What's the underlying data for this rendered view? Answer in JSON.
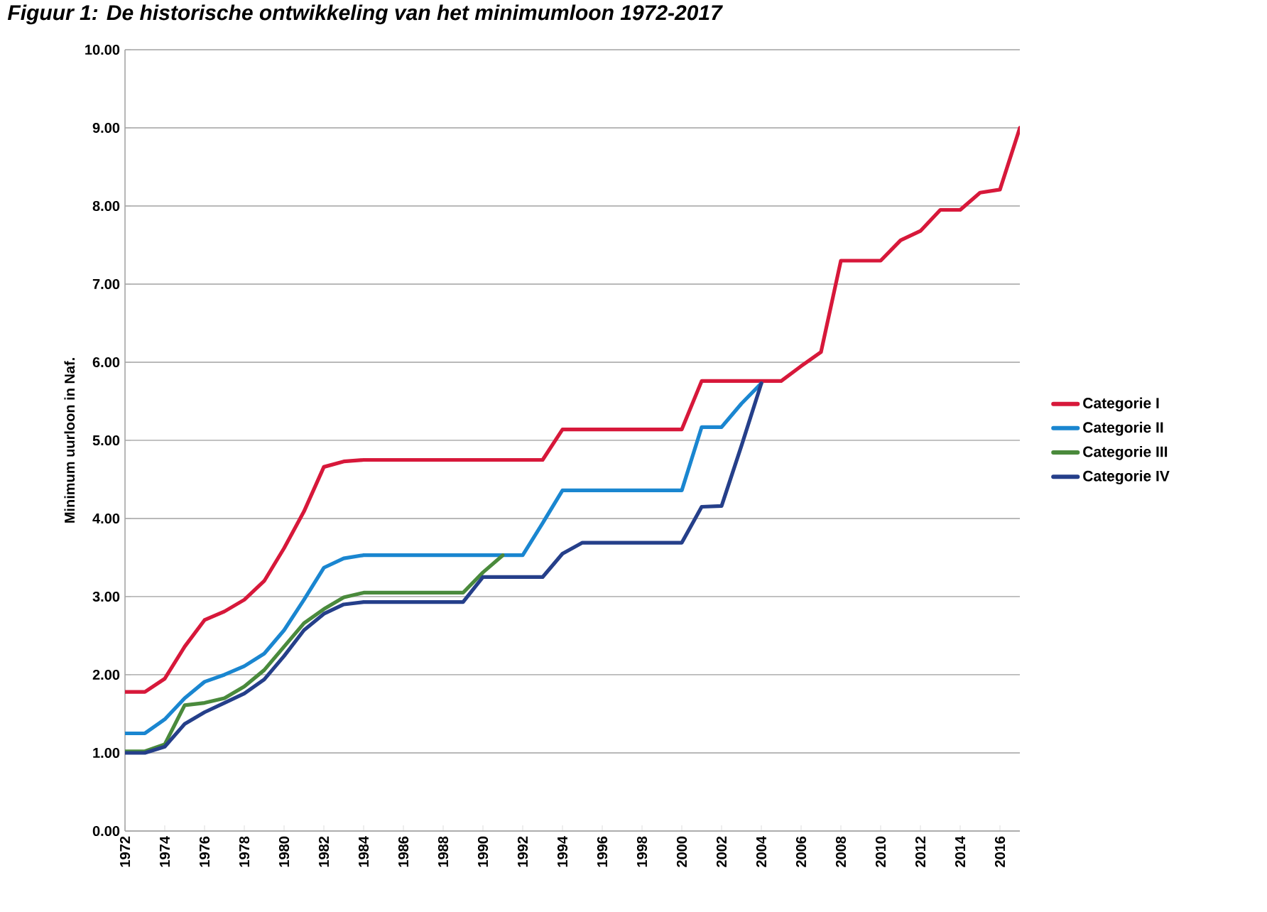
{
  "chart_data": {
    "type": "line",
    "title": "Figuur 1: De historische ontwikkeling van het minimumloon 1972-2017",
    "ylabel": "Minimum uurloon in Naf.",
    "x": [
      1972,
      1973,
      1974,
      1975,
      1976,
      1977,
      1978,
      1979,
      1980,
      1981,
      1982,
      1983,
      1984,
      1985,
      1986,
      1987,
      1988,
      1989,
      1990,
      1991,
      1992,
      1993,
      1994,
      1995,
      1996,
      1997,
      1998,
      1999,
      2000,
      2001,
      2002,
      2003,
      2004,
      2005,
      2006,
      2007,
      2008,
      2009,
      2010,
      2011,
      2012,
      2013,
      2014,
      2015,
      2016,
      2017
    ],
    "series": [
      {
        "name": "Categorie I",
        "color": "#d7183a",
        "values": [
          1.78,
          1.78,
          1.95,
          2.36,
          2.7,
          2.81,
          2.96,
          3.2,
          3.62,
          4.09,
          4.66,
          4.73,
          4.75,
          4.75,
          4.75,
          4.75,
          4.75,
          4.75,
          4.75,
          4.75,
          4.75,
          4.75,
          5.14,
          5.14,
          5.14,
          5.14,
          5.14,
          5.14,
          5.14,
          5.76,
          5.76,
          5.76,
          5.76,
          5.76,
          5.95,
          6.13,
          7.3,
          7.3,
          7.3,
          7.56,
          7.68,
          7.95,
          7.95,
          8.17,
          8.21,
          9.0
        ]
      },
      {
        "name": "Categorie II",
        "color": "#1a86d0",
        "values": [
          1.25,
          1.25,
          1.43,
          1.7,
          1.91,
          2.0,
          2.11,
          2.27,
          2.57,
          2.96,
          3.37,
          3.49,
          3.53,
          3.53,
          3.53,
          3.53,
          3.53,
          3.53,
          3.53,
          3.53,
          3.53,
          3.94,
          4.36,
          4.36,
          4.36,
          4.36,
          4.36,
          4.36,
          4.36,
          5.17,
          5.17,
          5.47,
          5.73,
          null,
          null,
          null,
          null,
          null,
          null,
          null,
          null,
          null,
          null,
          null,
          null,
          null
        ]
      },
      {
        "name": "Categorie III",
        "color": "#4a8a3c",
        "values": [
          1.02,
          1.02,
          1.11,
          1.61,
          1.64,
          1.7,
          1.85,
          2.06,
          2.36,
          2.66,
          2.84,
          2.99,
          3.05,
          3.05,
          3.05,
          3.05,
          3.05,
          3.05,
          3.31,
          3.53,
          null,
          null,
          null,
          null,
          null,
          null,
          null,
          null,
          null,
          null,
          null,
          null,
          null,
          null,
          null,
          null,
          null,
          null,
          null,
          null,
          null,
          null,
          null,
          null,
          null,
          null
        ]
      },
      {
        "name": "Categorie IV",
        "color": "#253f8a",
        "values": [
          1.0,
          1.0,
          1.08,
          1.37,
          1.52,
          1.64,
          1.76,
          1.94,
          2.24,
          2.57,
          2.78,
          2.9,
          2.93,
          2.93,
          2.93,
          2.93,
          2.93,
          2.93,
          3.25,
          3.25,
          3.25,
          3.25,
          3.55,
          3.69,
          3.69,
          3.69,
          3.69,
          3.69,
          3.69,
          4.15,
          4.16,
          4.93,
          5.73,
          null,
          null,
          null,
          null,
          null,
          null,
          null,
          null,
          null,
          null,
          null,
          null,
          null
        ]
      }
    ],
    "xlim": [
      1972,
      2017
    ],
    "xticks": [
      1972,
      1974,
      1976,
      1978,
      1980,
      1982,
      1984,
      1986,
      1988,
      1990,
      1992,
      1994,
      1996,
      1998,
      2000,
      2002,
      2004,
      2006,
      2008,
      2010,
      2012,
      2014,
      2016
    ],
    "ylim": [
      0,
      10
    ],
    "yticks": [
      {
        "value": 0,
        "label": "0.00"
      },
      {
        "value": 1,
        "label": "1.00"
      },
      {
        "value": 2,
        "label": "2.00"
      },
      {
        "value": 3,
        "label": "3.00"
      },
      {
        "value": 4,
        "label": "4.00"
      },
      {
        "value": 5,
        "label": "5.00"
      },
      {
        "value": 6,
        "label": "6.00"
      },
      {
        "value": 7,
        "label": "7.00"
      },
      {
        "value": 8,
        "label": "8.00"
      },
      {
        "value": 9,
        "label": "9.00"
      },
      {
        "value": 10,
        "label": "10.00"
      }
    ],
    "grid": "y",
    "legend": "right",
    "marker": "none",
    "line_style": "solid"
  }
}
